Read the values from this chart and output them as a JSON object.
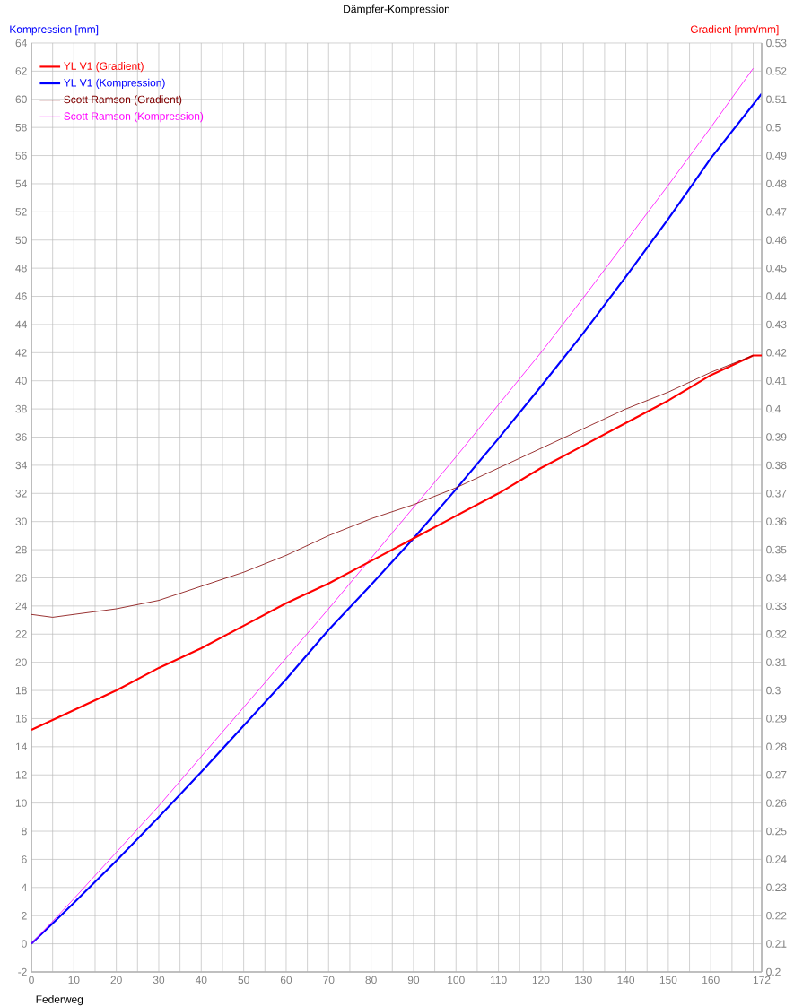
{
  "chart_data": {
    "type": "line",
    "title": "Dämpfer-Kompression",
    "xlabel": "Federweg",
    "ylabel": "Kompression [mm]",
    "y2label": "Gradient [mm/mm]",
    "xlim": [
      0,
      172
    ],
    "ylim": [
      -2,
      64
    ],
    "y2lim": [
      0.2,
      0.53
    ],
    "xticks": [
      0,
      {
        "value": 5,
        "label": null
      },
      10,
      {
        "value": 15,
        "label": null
      },
      20,
      {
        "value": 25,
        "label": null
      },
      30,
      {
        "value": 35,
        "label": null
      },
      40,
      {
        "value": 45,
        "label": null
      },
      50,
      {
        "value": 55,
        "label": null
      },
      60,
      {
        "value": 65,
        "label": null
      },
      70,
      {
        "value": 75,
        "label": null
      },
      80,
      {
        "value": 85,
        "label": null
      },
      90,
      {
        "value": 95,
        "label": null
      },
      100,
      {
        "value": 105,
        "label": null
      },
      110,
      {
        "value": 115,
        "label": null
      },
      120,
      {
        "value": 125,
        "label": null
      },
      130,
      {
        "value": 135,
        "label": null
      },
      140,
      {
        "value": 145,
        "label": null
      },
      150,
      {
        "value": 155,
        "label": null
      },
      160,
      {
        "value": 165,
        "label": null
      },
      {
        "value": 170,
        "label": null
      },
      172
    ],
    "yticks": [
      -2,
      0,
      2,
      4,
      6,
      8,
      10,
      12,
      14,
      16,
      18,
      20,
      22,
      24,
      26,
      28,
      30,
      32,
      34,
      36,
      38,
      40,
      42,
      44,
      46,
      48,
      50,
      52,
      54,
      56,
      58,
      60,
      62,
      64
    ],
    "y2ticks": [
      0.2,
      0.21,
      0.22,
      0.23,
      0.24,
      0.25,
      0.26,
      0.27,
      0.28,
      0.29,
      0.3,
      0.31,
      0.32,
      0.33,
      0.34,
      0.35,
      0.36,
      0.37,
      0.38,
      0.39,
      0.4,
      0.41,
      0.42,
      0.43,
      0.44,
      0.45,
      0.46,
      0.47,
      0.48,
      0.49,
      0.5,
      0.51,
      0.52,
      0.53
    ],
    "grid": true,
    "legend": "top left",
    "series": [
      {
        "name": "YL V1 (Gradient)",
        "color": "#ff0000",
        "axis": "y2",
        "x": [
          0,
          10,
          20,
          30,
          40,
          50,
          60,
          70,
          80,
          90,
          100,
          110,
          120,
          130,
          140,
          150,
          160,
          170,
          172
        ],
        "values": [
          0.286,
          0.293,
          0.3,
          0.308,
          0.315,
          0.323,
          0.331,
          0.338,
          0.346,
          0.354,
          0.362,
          0.37,
          0.379,
          0.387,
          0.395,
          0.403,
          0.412,
          0.419,
          0.419
        ]
      },
      {
        "name": "YL V1 (Kompression)",
        "color": "#0000ff",
        "x": [
          0,
          10,
          20,
          30,
          40,
          50,
          60,
          70,
          80,
          90,
          100,
          110,
          120,
          130,
          140,
          150,
          160,
          172
        ],
        "values": [
          0,
          2.9,
          5.9,
          9.0,
          12.2,
          15.5,
          18.8,
          22.3,
          25.5,
          28.8,
          32.3,
          35.9,
          39.6,
          43.4,
          47.4,
          51.5,
          55.8,
          60.4
        ]
      },
      {
        "name": "Scott Ramson (Gradient)",
        "color": "#800000",
        "axis": "y2",
        "x": [
          0,
          5,
          10,
          20,
          30,
          40,
          50,
          60,
          70,
          80,
          90,
          100,
          110,
          120,
          130,
          140,
          150,
          160,
          170
        ],
        "values": [
          0.327,
          0.326,
          0.327,
          0.329,
          0.332,
          0.337,
          0.342,
          0.348,
          0.355,
          0.361,
          0.366,
          0.372,
          0.379,
          0.386,
          0.393,
          0.4,
          0.406,
          0.413,
          0.419
        ]
      },
      {
        "name": "Scott Ramson (Kompression)",
        "color": "#ff00ff",
        "x": [
          0,
          10,
          20,
          30,
          40,
          50,
          60,
          70,
          80,
          90,
          100,
          110,
          120,
          130,
          140,
          150,
          160,
          170
        ],
        "values": [
          0,
          3.2,
          6.5,
          9.8,
          13.3,
          16.8,
          20.3,
          23.8,
          27.4,
          31.0,
          34.6,
          38.3,
          42.0,
          45.9,
          49.9,
          53.9,
          58.0,
          62.2
        ]
      }
    ]
  }
}
